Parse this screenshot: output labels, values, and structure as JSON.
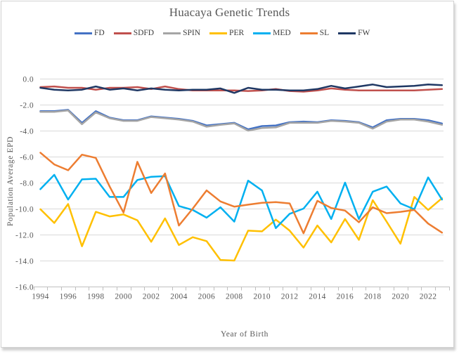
{
  "chart_data": {
    "type": "line",
    "title": "Huacaya Genetic Trends",
    "xlabel": "Year of Birth",
    "ylabel": "Population Average EPD",
    "x": [
      1994,
      1995,
      1996,
      1997,
      1998,
      1999,
      2000,
      2001,
      2002,
      2003,
      2004,
      2005,
      2006,
      2007,
      2008,
      2009,
      2010,
      2011,
      2012,
      2013,
      2014,
      2015,
      2016,
      2017,
      2018,
      2019,
      2020,
      2021,
      2022,
      2023
    ],
    "x_tick_labels": [
      1994,
      1996,
      1998,
      2000,
      2002,
      2004,
      2006,
      2008,
      2010,
      2012,
      2014,
      2016,
      2018,
      2020,
      2022
    ],
    "ylim": [
      -16,
      0
    ],
    "y_ticks": [
      0,
      -2,
      -4,
      -6,
      -8,
      -10,
      -12,
      -14,
      -16
    ],
    "grid": true,
    "legend_position": "top",
    "colors": {
      "grid": "#d9d9d9",
      "axis": "#bfbfbf",
      "text": "#595959",
      "legend_text": "#3d3d3d"
    },
    "series": [
      {
        "name": "FD",
        "color": "#4472C4",
        "values": [
          -2.5,
          -2.5,
          -2.4,
          -3.4,
          -2.5,
          -3.0,
          -3.2,
          -3.2,
          -2.9,
          -3.0,
          -3.1,
          -3.25,
          -3.6,
          -3.5,
          -3.4,
          -3.9,
          -3.65,
          -3.6,
          -3.35,
          -3.3,
          -3.35,
          -3.2,
          -3.25,
          -3.35,
          -3.75,
          -3.2,
          -3.1,
          -3.1,
          -3.2,
          -3.45
        ]
      },
      {
        "name": "SDFD",
        "color": "#C0504D",
        "values": [
          -0.65,
          -0.6,
          -0.7,
          -0.7,
          -0.85,
          -0.7,
          -0.7,
          -0.65,
          -0.8,
          -0.6,
          -0.8,
          -0.9,
          -0.9,
          -0.9,
          -0.9,
          -0.95,
          -0.9,
          -0.8,
          -0.95,
          -1.0,
          -0.9,
          -0.75,
          -0.85,
          -0.9,
          -0.9,
          -0.9,
          -0.9,
          -0.9,
          -0.85,
          -0.8
        ]
      },
      {
        "name": "SPIN",
        "color": "#A5A5A5",
        "values": [
          -2.55,
          -2.55,
          -2.45,
          -3.5,
          -2.6,
          -3.05,
          -3.25,
          -3.25,
          -2.95,
          -3.05,
          -3.15,
          -3.3,
          -3.7,
          -3.55,
          -3.45,
          -4.0,
          -3.8,
          -3.75,
          -3.4,
          -3.4,
          -3.4,
          -3.25,
          -3.3,
          -3.4,
          -3.85,
          -3.3,
          -3.15,
          -3.15,
          -3.3,
          -3.55
        ]
      },
      {
        "name": "PER",
        "color": "#FFC000",
        "values": [
          -10.05,
          -11.1,
          -9.65,
          -12.9,
          -10.25,
          -10.6,
          -10.45,
          -10.9,
          -12.55,
          -10.75,
          -12.8,
          -12.2,
          -12.5,
          -13.95,
          -14.0,
          -11.7,
          -11.75,
          -10.85,
          -11.7,
          -13.0,
          -11.3,
          -12.6,
          -10.8,
          -12.4,
          -9.35,
          -11.0,
          -12.7,
          -9.1,
          -10.1,
          -9.2
        ]
      },
      {
        "name": "MED",
        "color": "#00B0F0",
        "values": [
          -8.5,
          -7.4,
          -9.3,
          -7.75,
          -7.7,
          -9.1,
          -9.1,
          -7.8,
          -7.55,
          -7.5,
          -9.8,
          -10.1,
          -10.7,
          -9.9,
          -11.0,
          -7.85,
          -8.6,
          -11.5,
          -10.4,
          -10.0,
          -8.7,
          -10.8,
          -8.0,
          -10.8,
          -8.7,
          -8.3,
          -9.6,
          -10.05,
          -7.6,
          -9.3
        ]
      },
      {
        "name": "SL",
        "color": "#ED7D31",
        "values": [
          -5.7,
          -6.6,
          -7.05,
          -5.85,
          -6.1,
          -8.3,
          -10.3,
          -6.4,
          -8.8,
          -7.3,
          -11.3,
          -10.0,
          -8.6,
          -9.45,
          -9.85,
          -9.7,
          -9.55,
          -9.5,
          -9.6,
          -11.9,
          -9.4,
          -9.95,
          -10.15,
          -11.05,
          -9.9,
          -10.35,
          -10.25,
          -10.1,
          -11.15,
          -11.85
        ]
      },
      {
        "name": "FW",
        "color": "#1F3864",
        "values": [
          -0.7,
          -0.85,
          -0.9,
          -0.85,
          -0.6,
          -0.85,
          -0.75,
          -0.9,
          -0.75,
          -0.85,
          -0.9,
          -0.85,
          -0.85,
          -0.75,
          -1.1,
          -0.7,
          -0.85,
          -0.85,
          -0.9,
          -0.9,
          -0.8,
          -0.55,
          -0.75,
          -0.6,
          -0.45,
          -0.65,
          -0.6,
          -0.55,
          -0.45,
          -0.5
        ]
      }
    ]
  }
}
